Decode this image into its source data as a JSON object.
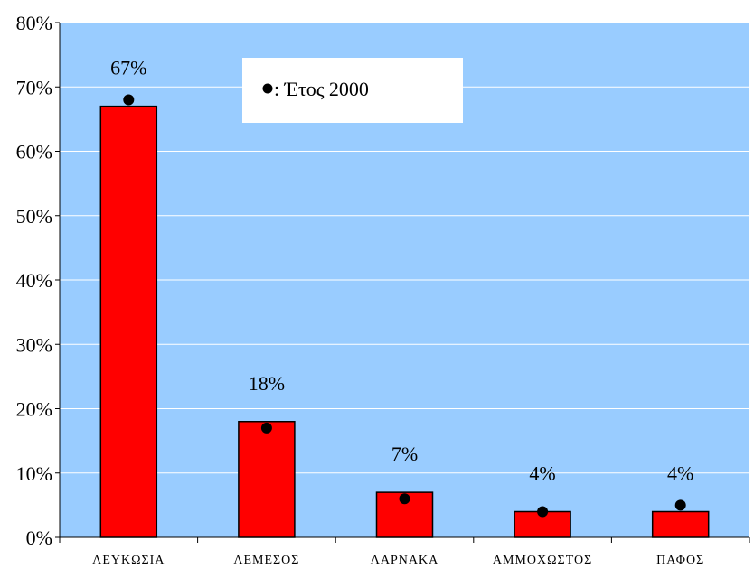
{
  "chart_data": {
    "type": "bar",
    "categories": [
      "ΛΕΥΚΩΣΙΑ",
      "ΛΕΜΕΣΟΣ",
      "ΛΑΡΝΑΚΑ",
      "ΑΜΜΟΧΩΣΤΟΣ",
      "ΠΑΦΟΣ"
    ],
    "series": [
      {
        "values": [
          67,
          18,
          7,
          4,
          4
        ]
      },
      {
        "name": "Έτος 2000",
        "marker": "dot",
        "values": [
          68,
          17,
          6,
          4,
          5
        ]
      }
    ],
    "data_labels": [
      "67%",
      "18%",
      "7%",
      "4%",
      "4%"
    ],
    "title": "",
    "xlabel": "",
    "ylabel": "",
    "ylim": [
      0,
      80
    ],
    "yticks": [
      "0%",
      "10%",
      "20%",
      "30%",
      "40%",
      "50%",
      "60%",
      "70%",
      "80%"
    ],
    "grid": true,
    "legend": {
      "placement": "top-center",
      "marker_text": ": Έτος 2000"
    },
    "colors": {
      "plot_bg": "#99ccff",
      "bar": "#ff0000",
      "grid": "#ffffff",
      "marker": "#000000"
    }
  }
}
